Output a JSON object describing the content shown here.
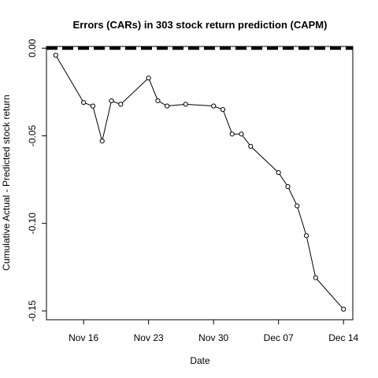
{
  "chart_data": {
    "type": "line",
    "title": "Errors (CARs) in 303 stock return prediction (CAPM)",
    "xlabel": "Date",
    "ylabel": "Cumulative Actual - Predicted stock return",
    "x_ticks": [
      {
        "label": "Nov 16",
        "date": "2012-11-16"
      },
      {
        "label": "Nov 23",
        "date": "2012-11-23"
      },
      {
        "label": "Nov 30",
        "date": "2012-11-30"
      },
      {
        "label": "Dec 07",
        "date": "2012-12-07"
      },
      {
        "label": "Dec 14",
        "date": "2012-12-14"
      }
    ],
    "y_ticks": [
      {
        "label": "0.00",
        "value": 0.0
      },
      {
        "label": "-0.05",
        "value": -0.05
      },
      {
        "label": "-0.10",
        "value": -0.1
      },
      {
        "label": "-0.15",
        "value": -0.15
      }
    ],
    "xlim": [
      "2012-11-12",
      "2012-12-15"
    ],
    "ylim": [
      -0.155,
      0.001
    ],
    "reference_line": {
      "value": 0.0,
      "style": "dashed"
    },
    "series": [
      {
        "points": [
          {
            "x": "2012-11-13",
            "y": -0.004
          },
          {
            "x": "2012-11-16",
            "y": -0.031
          },
          {
            "x": "2012-11-17",
            "y": -0.033
          },
          {
            "x": "2012-11-18",
            "y": -0.053
          },
          {
            "x": "2012-11-19",
            "y": -0.03
          },
          {
            "x": "2012-11-20",
            "y": -0.032
          },
          {
            "x": "2012-11-23",
            "y": -0.017
          },
          {
            "x": "2012-11-24",
            "y": -0.03
          },
          {
            "x": "2012-11-25",
            "y": -0.033
          },
          {
            "x": "2012-11-27",
            "y": -0.032
          },
          {
            "x": "2012-11-30",
            "y": -0.033
          },
          {
            "x": "2012-12-01",
            "y": -0.035
          },
          {
            "x": "2012-12-02",
            "y": -0.049
          },
          {
            "x": "2012-12-03",
            "y": -0.049
          },
          {
            "x": "2012-12-04",
            "y": -0.056
          },
          {
            "x": "2012-12-07",
            "y": -0.071
          },
          {
            "x": "2012-12-08",
            "y": -0.079
          },
          {
            "x": "2012-12-09",
            "y": -0.09
          },
          {
            "x": "2012-12-10",
            "y": -0.107
          },
          {
            "x": "2012-12-11",
            "y": -0.131
          },
          {
            "x": "2012-12-14",
            "y": -0.149
          }
        ]
      }
    ],
    "colors": {
      "line": "#000000",
      "marker_fill": "#ffffff",
      "reference_line": "#000000"
    }
  }
}
